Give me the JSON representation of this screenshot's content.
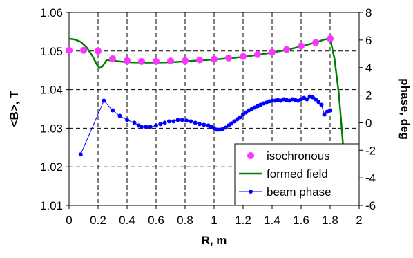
{
  "chart_data": {
    "type": "line",
    "xlabel": "R, m",
    "ylabel_left": "<B>, T",
    "ylabel_right": "phase, deg",
    "xlim": [
      0,
      2
    ],
    "ylim_left": [
      1.01,
      1.06
    ],
    "ylim_right": [
      -6,
      8
    ],
    "x_ticks": [
      "0",
      "0.2",
      "0.4",
      "0.6",
      "0.8",
      "1",
      "1.2",
      "1.4",
      "1.6",
      "1.8",
      "2"
    ],
    "y_left_ticks": [
      "1.01",
      "1.02",
      "1.03",
      "1.04",
      "1.05",
      "1.06"
    ],
    "y_right_ticks": [
      "-6",
      "-4",
      "-2",
      "0",
      "2",
      "4",
      "6",
      "8"
    ],
    "grid": "dashed",
    "legend_position": "bottom-right",
    "series": [
      {
        "name": "isochronous",
        "axis": "left",
        "style": "markers",
        "color": "#ff33ff",
        "x": [
          0,
          0.1,
          0.2,
          0.3,
          0.4,
          0.5,
          0.6,
          0.7,
          0.8,
          0.9,
          1.0,
          1.1,
          1.2,
          1.3,
          1.4,
          1.5,
          1.6,
          1.7,
          1.8
        ],
        "y": [
          1.0502,
          1.0502,
          1.05,
          1.048,
          1.0475,
          1.0473,
          1.0473,
          1.0474,
          1.0475,
          1.0477,
          1.0479,
          1.0482,
          1.0486,
          1.0491,
          1.0497,
          1.0504,
          1.0513,
          1.0522,
          1.0532
        ]
      },
      {
        "name": "formed field",
        "axis": "left",
        "style": "line",
        "color": "#008000",
        "x": [
          0,
          0.04,
          0.08,
          0.12,
          0.16,
          0.19,
          0.21,
          0.23,
          0.26,
          0.3,
          0.4,
          0.5,
          0.6,
          0.7,
          0.8,
          0.9,
          1.0,
          1.1,
          1.2,
          1.3,
          1.4,
          1.5,
          1.6,
          1.7,
          1.76,
          1.8,
          1.83,
          1.86,
          1.88,
          1.9,
          1.91,
          1.92
        ],
        "y": [
          1.0532,
          1.053,
          1.0524,
          1.051,
          1.0488,
          1.0466,
          1.0456,
          1.046,
          1.0477,
          1.0475,
          1.0471,
          1.047,
          1.047,
          1.0471,
          1.0473,
          1.0476,
          1.0478,
          1.0481,
          1.0485,
          1.049,
          1.0496,
          1.0503,
          1.0512,
          1.0522,
          1.053,
          1.0532,
          1.048,
          1.039,
          1.03,
          1.02,
          1.014,
          1.01
        ]
      },
      {
        "name": "beam phase",
        "axis": "right",
        "style": "line+markers",
        "color": "#0000ff",
        "x": [
          0.08,
          0.24,
          0.3,
          0.35,
          0.4,
          0.45,
          0.48,
          0.5,
          0.53,
          0.56,
          0.6,
          0.63,
          0.66,
          0.69,
          0.72,
          0.75,
          0.78,
          0.81,
          0.84,
          0.87,
          0.9,
          0.93,
          0.96,
          0.98,
          1.0,
          1.02,
          1.04,
          1.06,
          1.08,
          1.1,
          1.12,
          1.14,
          1.16,
          1.18,
          1.2,
          1.22,
          1.24,
          1.26,
          1.28,
          1.3,
          1.32,
          1.34,
          1.36,
          1.38,
          1.4,
          1.42,
          1.44,
          1.46,
          1.48,
          1.5,
          1.52,
          1.54,
          1.56,
          1.58,
          1.6,
          1.62,
          1.64,
          1.66,
          1.68,
          1.7,
          1.72,
          1.74,
          1.76,
          1.78,
          1.8
        ],
        "y": [
          -2.3,
          1.6,
          0.9,
          0.5,
          0.2,
          0.0,
          -0.2,
          -0.3,
          -0.3,
          -0.3,
          -0.2,
          -0.1,
          0.0,
          0.1,
          0.1,
          0.2,
          0.2,
          0.15,
          0.1,
          0.0,
          -0.1,
          -0.15,
          -0.2,
          -0.3,
          -0.4,
          -0.5,
          -0.5,
          -0.45,
          -0.35,
          -0.2,
          -0.05,
          0.1,
          0.25,
          0.4,
          0.6,
          0.75,
          0.9,
          1.0,
          1.1,
          1.2,
          1.3,
          1.4,
          1.45,
          1.55,
          1.6,
          1.6,
          1.65,
          1.6,
          1.7,
          1.65,
          1.6,
          1.7,
          1.65,
          1.6,
          1.7,
          1.8,
          1.7,
          1.9,
          1.85,
          1.7,
          1.5,
          1.3,
          0.6,
          0.8,
          0.9
        ]
      }
    ]
  }
}
